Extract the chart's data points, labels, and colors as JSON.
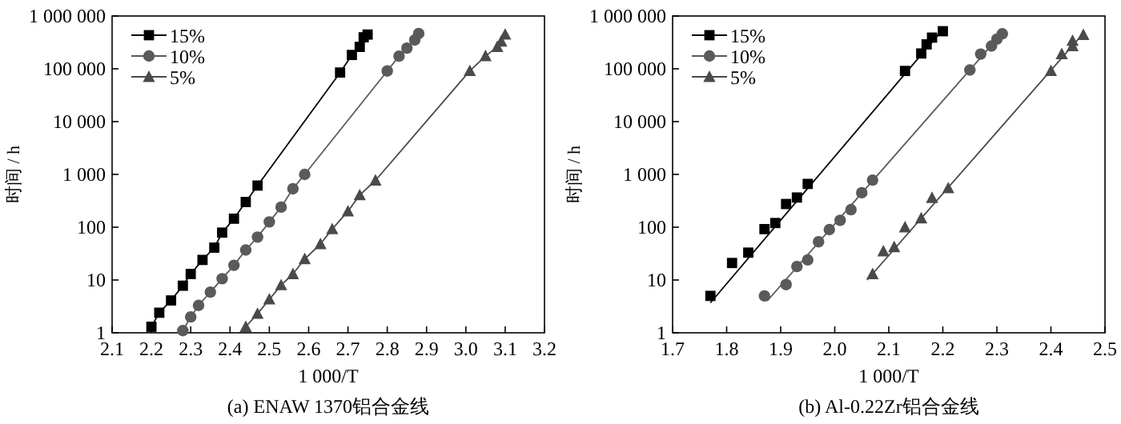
{
  "chart_data": [
    {
      "type": "line",
      "title": "(a) ENAW 1370铝合金线",
      "xlabel": "1 000/T",
      "ylabel": "时间 / h",
      "log": "y",
      "legend": "top left",
      "xlim": [
        2.1,
        3.2
      ],
      "xticks": [
        2.1,
        2.2,
        2.3,
        2.4,
        2.5,
        2.6,
        2.7,
        2.8,
        2.9,
        {
          "value": 3,
          "label": "3.0"
        },
        3.1,
        3.2
      ],
      "ylim": [
        1,
        1000000
      ],
      "yticks": [
        1,
        10,
        100,
        {
          "value": 1000,
          "label": "1 000"
        },
        {
          "value": 10000,
          "label": "10 000"
        },
        {
          "value": 100000,
          "label": "100 000"
        },
        {
          "value": 1000000,
          "label": "1 000 000"
        }
      ],
      "series": [
        {
          "name": "15%",
          "color": "#000000",
          "marker": "square",
          "x": [
            2.2,
            2.22,
            2.25,
            2.28,
            2.3,
            2.33,
            2.36,
            2.38,
            2.41,
            2.44,
            2.47,
            2.68,
            2.71,
            2.73,
            2.74,
            2.75
          ],
          "values": [
            1.3,
            2.4,
            4.1,
            7.8,
            13,
            24,
            41,
            79,
            145,
            300,
            615,
            85000,
            183000,
            260000,
            395000,
            445000
          ]
        },
        {
          "name": "10%",
          "color": "#5a5a5a",
          "marker": "circle",
          "x": [
            2.28,
            2.3,
            2.32,
            2.35,
            2.38,
            2.41,
            2.44,
            2.47,
            2.5,
            2.53,
            2.56,
            2.59,
            2.8,
            2.83,
            2.85,
            2.87,
            2.88
          ],
          "values": [
            1.1,
            2.0,
            3.3,
            5.9,
            10.6,
            19,
            37,
            65,
            126,
            240,
            535,
            1000,
            91000,
            174000,
            247000,
            352000,
            465000
          ]
        },
        {
          "name": "5%",
          "color": "#4a4a4a",
          "marker": "triangle",
          "x": [
            2.44,
            2.47,
            2.5,
            2.53,
            2.56,
            2.59,
            2.63,
            2.66,
            2.7,
            2.73,
            2.77,
            3.01,
            3.05,
            3.08,
            3.09,
            3.1
          ],
          "values": [
            1.3,
            2.3,
            4.3,
            8,
            13,
            25,
            48,
            92,
            200,
            405,
            770,
            91000,
            174000,
            260000,
            330000,
            445000
          ]
        }
      ]
    },
    {
      "type": "scatter",
      "title": "(b) Al-0.22Zr铝合金线",
      "xlabel": "1 000/T",
      "ylabel": "时间 / h",
      "log": "y",
      "legend": "top left",
      "xlim": [
        1.7,
        2.5
      ],
      "xticks": [
        1.7,
        1.8,
        1.9,
        {
          "value": 2,
          "label": "2.0"
        },
        2.1,
        2.2,
        2.3,
        2.4,
        2.5
      ],
      "ylim": [
        1,
        1000000
      ],
      "yticks": [
        1,
        10,
        100,
        {
          "value": 1000,
          "label": "1 000"
        },
        {
          "value": 10000,
          "label": "10 000"
        },
        {
          "value": 100000,
          "label": "100 000"
        },
        {
          "value": 1000000,
          "label": "1 000 000"
        }
      ],
      "series": [
        {
          "name": "15%",
          "color": "#000000",
          "marker": "square",
          "x": [
            1.77,
            1.81,
            1.84,
            1.87,
            1.89,
            1.91,
            1.93,
            1.95,
            2.13,
            2.16,
            2.17,
            2.18,
            2.2
          ],
          "values": [
            5,
            21,
            33,
            92,
            120,
            275,
            365,
            660,
            91000,
            195000,
            290000,
            390000,
            515000
          ]
        },
        {
          "name": "10%",
          "color": "#5a5a5a",
          "marker": "circle",
          "x": [
            1.87,
            1.91,
            1.93,
            1.95,
            1.97,
            1.99,
            2.01,
            2.03,
            2.05,
            2.07,
            2.25,
            2.27,
            2.29,
            2.3,
            2.31
          ],
          "values": [
            5,
            8.2,
            18,
            24,
            53,
            90,
            135,
            215,
            450,
            780,
            95000,
            190000,
            270000,
            365000,
            460000
          ]
        },
        {
          "name": "5%",
          "color": "#4a4a4a",
          "marker": "triangle",
          "x": [
            2.07,
            2.09,
            2.11,
            2.13,
            2.16,
            2.18,
            2.21,
            2.4,
            2.42,
            2.44,
            2.44,
            2.46
          ],
          "values": [
            13,
            35,
            42,
            100,
            148,
            360,
            550,
            91000,
            190000,
            270000,
            340000,
            440000
          ]
        },
        {
          "type": "line",
          "color": "#000000",
          "marker": "none",
          "x": [
            1.77,
            2.2
          ],
          "values": [
            3.7,
            560000
          ]
        },
        {
          "type": "line",
          "color": "#5a5a5a",
          "marker": "none",
          "x": [
            1.875,
            2.31
          ],
          "values": [
            4,
            480000
          ]
        },
        {
          "type": "line",
          "color": "#4a4a4a",
          "marker": "none",
          "x": [
            2.06,
            2.46
          ],
          "values": [
            10,
            470000
          ]
        }
      ]
    }
  ]
}
